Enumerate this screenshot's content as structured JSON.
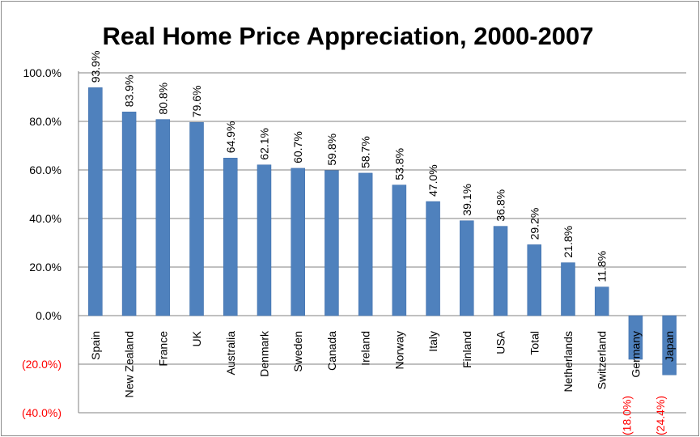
{
  "chart_data": {
    "type": "bar",
    "title": "Real Home Price Appreciation, 2000-2007",
    "xlabel": "",
    "ylabel": "",
    "ylim": [
      -40,
      100
    ],
    "yticks": [
      {
        "value": 100,
        "label": "100.0%"
      },
      {
        "value": 80,
        "label": "80.0%"
      },
      {
        "value": 60,
        "label": "60.0%"
      },
      {
        "value": 40,
        "label": "40.0%"
      },
      {
        "value": 20,
        "label": "20.0%"
      },
      {
        "value": 0,
        "label": "0.0%"
      },
      {
        "value": -20,
        "label": "(20.0%)"
      },
      {
        "value": -40,
        "label": "(40.0%)"
      }
    ],
    "gridlines": true,
    "legend": "none",
    "categories": [
      "Spain",
      "New Zealand",
      "France",
      "UK",
      "Australia",
      "Denmark",
      "Sweden",
      "Canada",
      "Ireland",
      "Norway",
      "Italy",
      "Finland",
      "USA",
      "Total",
      "Netherlands",
      "Switzerland",
      "Germany",
      "Japan"
    ],
    "values": [
      93.9,
      83.9,
      80.8,
      79.6,
      64.9,
      62.1,
      60.7,
      59.8,
      58.7,
      53.8,
      47.0,
      39.1,
      36.8,
      29.2,
      21.8,
      11.8,
      -18.0,
      -24.4
    ],
    "data_labels": [
      "93.9%",
      "83.9%",
      "80.8%",
      "79.6%",
      "64.9%",
      "62.1%",
      "60.7%",
      "59.8%",
      "58.7%",
      "53.8%",
      "47.0%",
      "39.1%",
      "36.8%",
      "29.2%",
      "21.8%",
      "11.8%",
      "(18.0%)",
      "(24.4%)"
    ],
    "colors": {
      "bar": "#4f81bd",
      "bar_edge": "#3a6aa8",
      "negative_label": "#ff0000",
      "text": "#000000",
      "grid": "#808080",
      "axis": "#808080"
    }
  }
}
